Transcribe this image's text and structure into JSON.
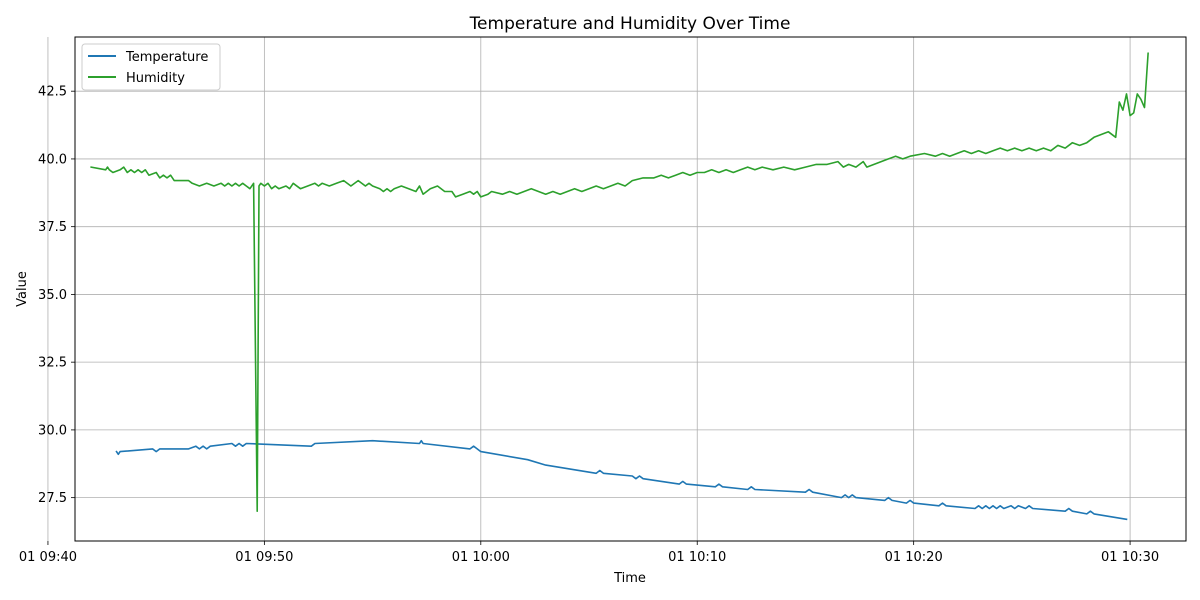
{
  "chart_data": {
    "type": "line",
    "title": "Temperature and Humidity Over Time",
    "xlabel": "Time",
    "ylabel": "Value",
    "grid": true,
    "legend_position": "top-left",
    "x_ticks": [
      "01 09:40",
      "01 09:50",
      "01 10:00",
      "01 10:10",
      "01 10:20",
      "01 10:30"
    ],
    "x_range": [
      "09:41:15",
      "10:32:35"
    ],
    "y_ticks": [
      27.5,
      30.0,
      32.5,
      35.0,
      37.5,
      40.0,
      42.5
    ],
    "ylim": [
      25.9,
      44.5
    ],
    "series": [
      {
        "name": "Temperature",
        "color": "#1f77b4",
        "points": [
          [
            "09:43:10",
            29.2
          ],
          [
            "09:43:15",
            29.1
          ],
          [
            "09:43:20",
            29.2
          ],
          [
            "09:44:50",
            29.3
          ],
          [
            "09:45:00",
            29.2
          ],
          [
            "09:45:10",
            29.3
          ],
          [
            "09:46:30",
            29.3
          ],
          [
            "09:46:50",
            29.4
          ],
          [
            "09:47:00",
            29.3
          ],
          [
            "09:47:10",
            29.4
          ],
          [
            "09:47:20",
            29.3
          ],
          [
            "09:47:30",
            29.4
          ],
          [
            "09:48:30",
            29.5
          ],
          [
            "09:48:40",
            29.4
          ],
          [
            "09:48:50",
            29.5
          ],
          [
            "09:49:00",
            29.4
          ],
          [
            "09:49:10",
            29.5
          ],
          [
            "09:52:10",
            29.4
          ],
          [
            "09:52:20",
            29.5
          ],
          [
            "09:55:00",
            29.6
          ],
          [
            "09:57:10",
            29.5
          ],
          [
            "09:57:15",
            29.6
          ],
          [
            "09:57:20",
            29.5
          ],
          [
            "09:59:30",
            29.3
          ],
          [
            "09:59:40",
            29.4
          ],
          [
            "09:59:50",
            29.3
          ],
          [
            "10:00:00",
            29.2
          ],
          [
            "10:02:10",
            28.9
          ],
          [
            "10:03:00",
            28.7
          ],
          [
            "10:05:20",
            28.4
          ],
          [
            "10:05:30",
            28.5
          ],
          [
            "10:05:40",
            28.4
          ],
          [
            "10:07:00",
            28.3
          ],
          [
            "10:07:10",
            28.2
          ],
          [
            "10:07:20",
            28.3
          ],
          [
            "10:07:30",
            28.2
          ],
          [
            "10:09:10",
            28.0
          ],
          [
            "10:09:20",
            28.1
          ],
          [
            "10:09:30",
            28.0
          ],
          [
            "10:10:50",
            27.9
          ],
          [
            "10:11:00",
            28.0
          ],
          [
            "10:11:10",
            27.9
          ],
          [
            "10:12:20",
            27.8
          ],
          [
            "10:12:30",
            27.9
          ],
          [
            "10:12:40",
            27.8
          ],
          [
            "10:15:00",
            27.7
          ],
          [
            "10:15:10",
            27.8
          ],
          [
            "10:15:20",
            27.7
          ],
          [
            "10:16:40",
            27.5
          ],
          [
            "10:16:50",
            27.6
          ],
          [
            "10:17:00",
            27.5
          ],
          [
            "10:17:10",
            27.6
          ],
          [
            "10:17:20",
            27.5
          ],
          [
            "10:18:40",
            27.4
          ],
          [
            "10:18:50",
            27.5
          ],
          [
            "10:19:00",
            27.4
          ],
          [
            "10:19:40",
            27.3
          ],
          [
            "10:19:50",
            27.4
          ],
          [
            "10:20:00",
            27.3
          ],
          [
            "10:21:10",
            27.2
          ],
          [
            "10:21:20",
            27.3
          ],
          [
            "10:21:30",
            27.2
          ],
          [
            "10:22:50",
            27.1
          ],
          [
            "10:23:00",
            27.2
          ],
          [
            "10:23:10",
            27.1
          ],
          [
            "10:23:20",
            27.2
          ],
          [
            "10:23:30",
            27.1
          ],
          [
            "10:23:40",
            27.2
          ],
          [
            "10:23:50",
            27.1
          ],
          [
            "10:24:00",
            27.2
          ],
          [
            "10:24:10",
            27.1
          ],
          [
            "10:24:30",
            27.2
          ],
          [
            "10:24:40",
            27.1
          ],
          [
            "10:24:50",
            27.2
          ],
          [
            "10:25:10",
            27.1
          ],
          [
            "10:25:20",
            27.2
          ],
          [
            "10:25:30",
            27.1
          ],
          [
            "10:27:00",
            27.0
          ],
          [
            "10:27:10",
            27.1
          ],
          [
            "10:27:20",
            27.0
          ],
          [
            "10:28:00",
            26.9
          ],
          [
            "10:28:10",
            27.0
          ],
          [
            "10:28:20",
            26.9
          ],
          [
            "10:29:50",
            26.7
          ]
        ]
      },
      {
        "name": "Humidity",
        "color": "#2ca02c",
        "points": [
          [
            "09:42:00",
            39.7
          ],
          [
            "09:42:40",
            39.6
          ],
          [
            "09:42:45",
            39.7
          ],
          [
            "09:42:50",
            39.6
          ],
          [
            "09:43:00",
            39.5
          ],
          [
            "09:43:20",
            39.6
          ],
          [
            "09:43:30",
            39.7
          ],
          [
            "09:43:40",
            39.5
          ],
          [
            "09:43:50",
            39.6
          ],
          [
            "09:44:00",
            39.5
          ],
          [
            "09:44:10",
            39.6
          ],
          [
            "09:44:20",
            39.5
          ],
          [
            "09:44:30",
            39.6
          ],
          [
            "09:44:40",
            39.4
          ],
          [
            "09:45:00",
            39.5
          ],
          [
            "09:45:10",
            39.3
          ],
          [
            "09:45:20",
            39.4
          ],
          [
            "09:45:30",
            39.3
          ],
          [
            "09:45:40",
            39.4
          ],
          [
            "09:45:50",
            39.2
          ],
          [
            "09:46:30",
            39.2
          ],
          [
            "09:46:40",
            39.1
          ],
          [
            "09:47:00",
            39.0
          ],
          [
            "09:47:20",
            39.1
          ],
          [
            "09:47:40",
            39.0
          ],
          [
            "09:48:00",
            39.1
          ],
          [
            "09:48:10",
            39.0
          ],
          [
            "09:48:20",
            39.1
          ],
          [
            "09:48:30",
            39.0
          ],
          [
            "09:48:40",
            39.1
          ],
          [
            "09:48:50",
            39.0
          ],
          [
            "09:49:00",
            39.1
          ],
          [
            "09:49:10",
            39.0
          ],
          [
            "09:49:20",
            38.9
          ],
          [
            "09:49:30",
            39.1
          ],
          [
            "09:49:40",
            27.0
          ],
          [
            "09:49:45",
            39.0
          ],
          [
            "09:49:50",
            39.1
          ],
          [
            "09:50:00",
            39.0
          ],
          [
            "09:50:10",
            39.1
          ],
          [
            "09:50:20",
            38.9
          ],
          [
            "09:50:30",
            39.0
          ],
          [
            "09:50:40",
            38.9
          ],
          [
            "09:51:00",
            39.0
          ],
          [
            "09:51:10",
            38.9
          ],
          [
            "09:51:20",
            39.1
          ],
          [
            "09:51:40",
            38.9
          ],
          [
            "09:52:00",
            39.0
          ],
          [
            "09:52:20",
            39.1
          ],
          [
            "09:52:30",
            39.0
          ],
          [
            "09:52:40",
            39.1
          ],
          [
            "09:53:00",
            39.0
          ],
          [
            "09:53:20",
            39.1
          ],
          [
            "09:53:40",
            39.2
          ],
          [
            "09:54:00",
            39.0
          ],
          [
            "09:54:20",
            39.2
          ],
          [
            "09:54:40",
            39.0
          ],
          [
            "09:54:50",
            39.1
          ],
          [
            "09:55:00",
            39.0
          ],
          [
            "09:55:20",
            38.9
          ],
          [
            "09:55:30",
            38.8
          ],
          [
            "09:55:40",
            38.9
          ],
          [
            "09:55:50",
            38.8
          ],
          [
            "09:56:00",
            38.9
          ],
          [
            "09:56:20",
            39.0
          ],
          [
            "09:56:40",
            38.9
          ],
          [
            "09:57:00",
            38.8
          ],
          [
            "09:57:10",
            39.0
          ],
          [
            "09:57:20",
            38.7
          ],
          [
            "09:57:40",
            38.9
          ],
          [
            "09:58:00",
            39.0
          ],
          [
            "09:58:20",
            38.8
          ],
          [
            "09:58:40",
            38.8
          ],
          [
            "09:58:50",
            38.6
          ],
          [
            "09:59:10",
            38.7
          ],
          [
            "09:59:30",
            38.8
          ],
          [
            "09:59:40",
            38.7
          ],
          [
            "09:59:50",
            38.8
          ],
          [
            "10:00:00",
            38.6
          ],
          [
            "10:00:20",
            38.7
          ],
          [
            "10:00:30",
            38.8
          ],
          [
            "10:01:00",
            38.7
          ],
          [
            "10:01:20",
            38.8
          ],
          [
            "10:01:40",
            38.7
          ],
          [
            "10:02:00",
            38.8
          ],
          [
            "10:02:20",
            38.9
          ],
          [
            "10:02:40",
            38.8
          ],
          [
            "10:03:00",
            38.7
          ],
          [
            "10:03:20",
            38.8
          ],
          [
            "10:03:40",
            38.7
          ],
          [
            "10:04:00",
            38.8
          ],
          [
            "10:04:20",
            38.9
          ],
          [
            "10:04:40",
            38.8
          ],
          [
            "10:05:00",
            38.9
          ],
          [
            "10:05:20",
            39.0
          ],
          [
            "10:05:40",
            38.9
          ],
          [
            "10:06:00",
            39.0
          ],
          [
            "10:06:20",
            39.1
          ],
          [
            "10:06:40",
            39.0
          ],
          [
            "10:07:00",
            39.2
          ],
          [
            "10:07:30",
            39.3
          ],
          [
            "10:08:00",
            39.3
          ],
          [
            "10:08:20",
            39.4
          ],
          [
            "10:08:40",
            39.3
          ],
          [
            "10:09:00",
            39.4
          ],
          [
            "10:09:20",
            39.5
          ],
          [
            "10:09:40",
            39.4
          ],
          [
            "10:10:00",
            39.5
          ],
          [
            "10:10:20",
            39.5
          ],
          [
            "10:10:40",
            39.6
          ],
          [
            "10:11:00",
            39.5
          ],
          [
            "10:11:20",
            39.6
          ],
          [
            "10:11:40",
            39.5
          ],
          [
            "10:12:00",
            39.6
          ],
          [
            "10:12:20",
            39.7
          ],
          [
            "10:12:40",
            39.6
          ],
          [
            "10:13:00",
            39.7
          ],
          [
            "10:13:30",
            39.6
          ],
          [
            "10:14:00",
            39.7
          ],
          [
            "10:14:30",
            39.6
          ],
          [
            "10:15:00",
            39.7
          ],
          [
            "10:15:30",
            39.8
          ],
          [
            "10:16:00",
            39.8
          ],
          [
            "10:16:30",
            39.9
          ],
          [
            "10:16:45",
            39.7
          ],
          [
            "10:17:00",
            39.8
          ],
          [
            "10:17:20",
            39.7
          ],
          [
            "10:17:40",
            39.9
          ],
          [
            "10:17:50",
            39.7
          ],
          [
            "10:18:10",
            39.8
          ],
          [
            "10:18:30",
            39.9
          ],
          [
            "10:18:50",
            40.0
          ],
          [
            "10:19:10",
            40.1
          ],
          [
            "10:19:30",
            40.0
          ],
          [
            "10:19:50",
            40.1
          ],
          [
            "10:20:30",
            40.2
          ],
          [
            "10:21:00",
            40.1
          ],
          [
            "10:21:20",
            40.2
          ],
          [
            "10:21:40",
            40.1
          ],
          [
            "10:22:00",
            40.2
          ],
          [
            "10:22:20",
            40.3
          ],
          [
            "10:22:40",
            40.2
          ],
          [
            "10:23:00",
            40.3
          ],
          [
            "10:23:20",
            40.2
          ],
          [
            "10:23:40",
            40.3
          ],
          [
            "10:24:00",
            40.4
          ],
          [
            "10:24:20",
            40.3
          ],
          [
            "10:24:40",
            40.4
          ],
          [
            "10:25:00",
            40.3
          ],
          [
            "10:25:20",
            40.4
          ],
          [
            "10:25:40",
            40.3
          ],
          [
            "10:26:00",
            40.4
          ],
          [
            "10:26:20",
            40.3
          ],
          [
            "10:26:40",
            40.5
          ],
          [
            "10:27:00",
            40.4
          ],
          [
            "10:27:20",
            40.6
          ],
          [
            "10:27:40",
            40.5
          ],
          [
            "10:28:00",
            40.6
          ],
          [
            "10:28:20",
            40.8
          ],
          [
            "10:28:40",
            40.9
          ],
          [
            "10:29:00",
            41.0
          ],
          [
            "10:29:20",
            40.8
          ],
          [
            "10:29:30",
            42.1
          ],
          [
            "10:29:40",
            41.8
          ],
          [
            "10:29:50",
            42.4
          ],
          [
            "10:30:00",
            41.6
          ],
          [
            "10:30:10",
            41.7
          ],
          [
            "10:30:20",
            42.4
          ],
          [
            "10:30:30",
            42.2
          ],
          [
            "10:30:40",
            41.9
          ],
          [
            "10:30:50",
            43.9
          ]
        ]
      }
    ]
  }
}
